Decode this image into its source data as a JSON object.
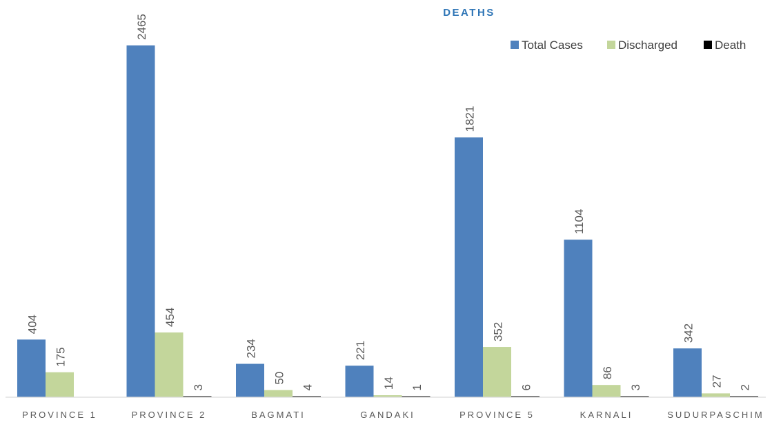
{
  "chart_data": {
    "type": "bar",
    "title": "DEATHS",
    "title_color": "#2e75b6",
    "categories": [
      "PROVINCE 1",
      "PROVINCE 2",
      "BAGMATI",
      "GANDAKI",
      "PROVINCE 5",
      "KARNALI",
      "SUDURPASCHIM"
    ],
    "series": [
      {
        "name": "Total Cases",
        "color": "#4f81bd",
        "values": [
          404,
          2465,
          234,
          221,
          1821,
          1104,
          342
        ]
      },
      {
        "name": "Discharged",
        "color": "#c3d69b",
        "values": [
          175,
          454,
          50,
          14,
          352,
          86,
          27
        ]
      },
      {
        "name": "Death",
        "color": "#000000",
        "values": [
          0,
          3,
          4,
          1,
          6,
          3,
          2
        ]
      }
    ],
    "data_labels": [
      [
        "404",
        "2465",
        "234",
        "221",
        "1821",
        "1104",
        "342"
      ],
      [
        "175",
        "454",
        "50",
        "14",
        "352",
        "86",
        "27"
      ],
      [
        "",
        "3",
        "4",
        "1",
        "6",
        "3",
        "2"
      ]
    ],
    "xlabel": "",
    "ylabel": "",
    "ylim": [
      0,
      2465
    ],
    "legend_position": "top-right",
    "grid": false
  }
}
